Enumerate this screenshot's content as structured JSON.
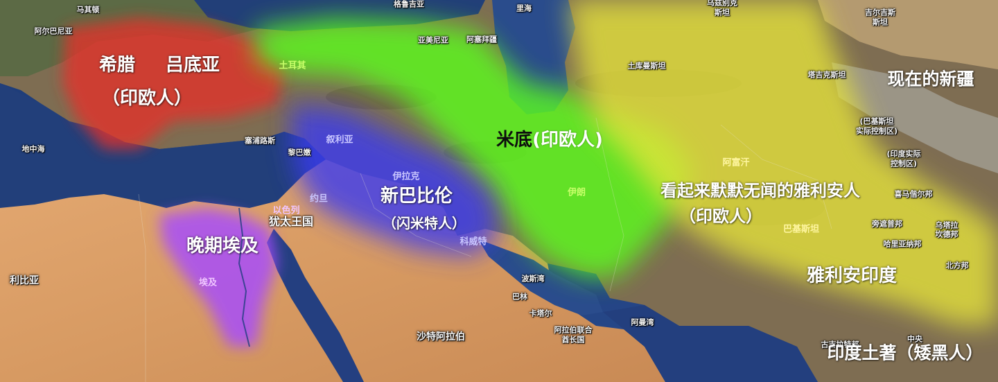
{
  "map": {
    "colors": {
      "sea": "#22407a",
      "land_desert": "#d59a62",
      "land_mountain": "#7d6a4e",
      "greek_red": "#e4302c",
      "median_green": "#5cff1c",
      "babylon_blue": "#3a3af0",
      "egypt_purple": "#a64bff",
      "aryan_yellow": "#e6e43a"
    },
    "region_labels": {
      "greece": "希腊",
      "lydia": "吕底亚",
      "greek_lydia_group": "（印欧人）",
      "media_name": "米底",
      "media_group": "(印欧人)",
      "neo_babylon": "新巴比伦",
      "neo_babylon_group": "（闪米特人）",
      "late_egypt": "晚期埃及",
      "judah": "犹太王国",
      "aryans": "看起来默默无闻的雅利安人",
      "aryans_group": "（印欧人）",
      "aryan_india": "雅利安印度",
      "xinjiang": "现在的新疆",
      "native_india": "印度土著（矮黑人）"
    },
    "base_labels": {
      "macedonia": "马其顿",
      "albania": "阿尔巴尼亚",
      "georgia": "格鲁吉亚",
      "armenia": "亚美尼亚",
      "azerbaijan": "阿塞拜疆",
      "caspian": "里海",
      "kazakhstan_1": "乌兹别克",
      "kazakhstan_2": "斯坦",
      "kyrgyz_1": "吉尔吉斯",
      "kyrgyz_2": "斯坦",
      "turkey": "土耳其",
      "turkmenistan": "土库曼斯坦",
      "tajikistan": "塔吉克斯坦",
      "mediterranean": "地中海",
      "cyprus": "塞浦路斯",
      "lebanon": "黎巴嫩",
      "syria": "叙利亚",
      "iraq": "伊拉克",
      "israel": "以色列",
      "jordan": "约旦",
      "kuwait": "科威特",
      "iran": "伊朗",
      "afghanistan": "阿富汗",
      "pakistan": "巴基斯坦",
      "pak_control_1": "(巴基斯坦",
      "pak_control_2": "实际控制区)",
      "ind_control_1": "(印度实际",
      "ind_control_2": "控制区)",
      "himachal": "喜马偕尔邦",
      "uttarakhand": "乌塔拉",
      "uttarakhand_2": "坎德邦",
      "punjab": "旁遮普邦",
      "haryana": "哈里亚纳邦",
      "uttar": "北方邦",
      "persian_gulf": "波斯湾",
      "bahrain": "巴林",
      "qatar": "卡塔尔",
      "uae_1": "阿拉伯联合",
      "uae_2": "酋长国",
      "oman_gulf": "阿曼湾",
      "gujarat": "古吉拉特邦",
      "madhya": "中央",
      "libya": "利比亚",
      "egypt": "埃及",
      "saudi": "沙特阿拉伯"
    }
  }
}
